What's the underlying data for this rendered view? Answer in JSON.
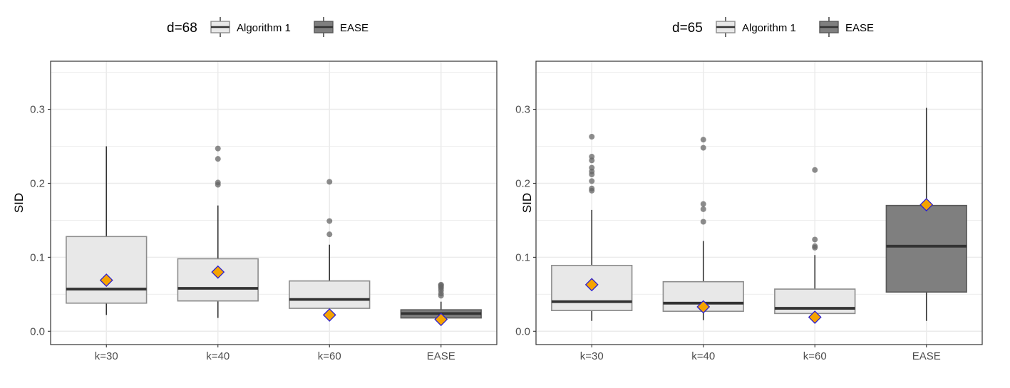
{
  "colors": {
    "algorithm_fill": "#e8e8e8",
    "algorithm_stroke": "#8c8c8c",
    "ease_fill": "#7f7f7f",
    "ease_stroke": "#595959",
    "median": "#333333",
    "whisker": "#333333",
    "outlier": "#666666",
    "mean_fill": "#f5a300",
    "mean_stroke": "#2b1fd1",
    "grid": "#ebebeb",
    "panel_border": "#333333"
  },
  "chart_data": [
    {
      "type": "box",
      "legend": {
        "title": "d=68",
        "entries": [
          {
            "label": "Algorithm 1",
            "style": "algorithm"
          },
          {
            "label": "EASE",
            "style": "ease"
          }
        ],
        "position": "top"
      },
      "ylabel": "SID",
      "ylim": [
        -0.018,
        0.365
      ],
      "yticks": [
        0.0,
        0.1,
        0.2,
        0.3
      ],
      "ytick_labels": [
        "0.0",
        "0.1",
        "0.2",
        "0.3"
      ],
      "grid": true,
      "categories": [
        "k=30",
        "k=40",
        "k=60",
        "EASE"
      ],
      "boxes": [
        {
          "category": "k=30",
          "group": "Algorithm 1",
          "whisker_low": 0.022,
          "q1": 0.038,
          "median": 0.057,
          "q3": 0.128,
          "whisker_high": 0.25,
          "mean": 0.069,
          "outliers": []
        },
        {
          "category": "k=40",
          "group": "Algorithm 1",
          "whisker_low": 0.018,
          "q1": 0.041,
          "median": 0.058,
          "q3": 0.098,
          "whisker_high": 0.17,
          "mean": 0.08,
          "outliers": [
            0.198,
            0.201,
            0.233,
            0.247
          ]
        },
        {
          "category": "k=60",
          "group": "Algorithm 1",
          "whisker_low": 0.019,
          "q1": 0.031,
          "median": 0.043,
          "q3": 0.068,
          "whisker_high": 0.117,
          "mean": 0.022,
          "outliers": [
            0.131,
            0.149,
            0.202
          ]
        },
        {
          "category": "EASE",
          "group": "EASE",
          "whisker_low": 0.017,
          "q1": 0.018,
          "median": 0.024,
          "q3": 0.029,
          "whisker_high": 0.04,
          "mean": 0.016,
          "outliers": [
            0.048,
            0.051,
            0.055,
            0.058,
            0.06,
            0.062,
            0.063
          ]
        }
      ]
    },
    {
      "type": "box",
      "legend": {
        "title": "d=65",
        "entries": [
          {
            "label": "Algorithm 1",
            "style": "algorithm"
          },
          {
            "label": "EASE",
            "style": "ease"
          }
        ],
        "position": "top"
      },
      "ylabel": "SID",
      "ylim": [
        -0.018,
        0.365
      ],
      "yticks": [
        0.0,
        0.1,
        0.2,
        0.3
      ],
      "ytick_labels": [
        "0.0",
        "0.1",
        "0.2",
        "0.3"
      ],
      "grid": true,
      "categories": [
        "k=30",
        "k=40",
        "k=60",
        "EASE"
      ],
      "boxes": [
        {
          "category": "k=30",
          "group": "Algorithm 1",
          "whisker_low": 0.014,
          "q1": 0.028,
          "median": 0.04,
          "q3": 0.089,
          "whisker_high": 0.164,
          "mean": 0.063,
          "outliers": [
            0.19,
            0.193,
            0.203,
            0.212,
            0.216,
            0.221,
            0.231,
            0.236,
            0.263
          ]
        },
        {
          "category": "k=40",
          "group": "Algorithm 1",
          "whisker_low": 0.015,
          "q1": 0.027,
          "median": 0.038,
          "q3": 0.067,
          "whisker_high": 0.122,
          "mean": 0.033,
          "outliers": [
            0.148,
            0.165,
            0.172,
            0.248,
            0.259
          ]
        },
        {
          "category": "k=60",
          "group": "Algorithm 1",
          "whisker_low": 0.017,
          "q1": 0.024,
          "median": 0.031,
          "q3": 0.057,
          "whisker_high": 0.103,
          "mean": 0.019,
          "outliers": [
            0.113,
            0.115,
            0.124,
            0.218
          ]
        },
        {
          "category": "EASE",
          "group": "EASE",
          "whisker_low": 0.014,
          "q1": 0.053,
          "median": 0.115,
          "q3": 0.17,
          "whisker_high": 0.302,
          "mean": 0.171,
          "outliers": []
        }
      ]
    }
  ]
}
